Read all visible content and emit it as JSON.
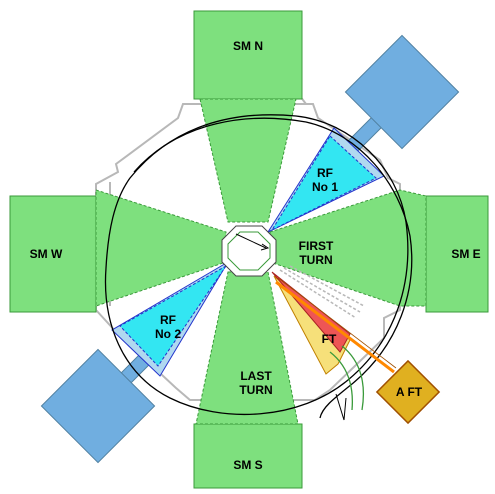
{
  "colors": {
    "magnet_fill": "#7ee07e",
    "magnet_stroke": "#3a9a3a",
    "rf_fill": "#33e6f2",
    "rf_stroke": "#2233cc",
    "rf_outer": "#b0d8f0",
    "coupler_fill": "#70aee0",
    "ft_fill": "#ee5555",
    "ft_light": "#f6e07a",
    "aft_fill": "#e0b020",
    "aft_stroke": "#a05000",
    "vacuum_chamber": "#b8b8b8",
    "orbit": "#000000",
    "extraction_beam": "#ff8800"
  },
  "labels": {
    "sm_north": "SM N",
    "sm_west": "SM W",
    "sm_east": "SM E",
    "sm_south": "SM S",
    "rf1_line1": "RF",
    "rf1_line2": "No 1",
    "rf2_line1": "RF",
    "rf2_line2": "No 2",
    "first_turn_line1": "FIRST",
    "first_turn_line2": "TURN",
    "last_turn_line1": "LAST",
    "last_turn_line2": "TURN",
    "ft": "FT",
    "aft": "A FT"
  }
}
